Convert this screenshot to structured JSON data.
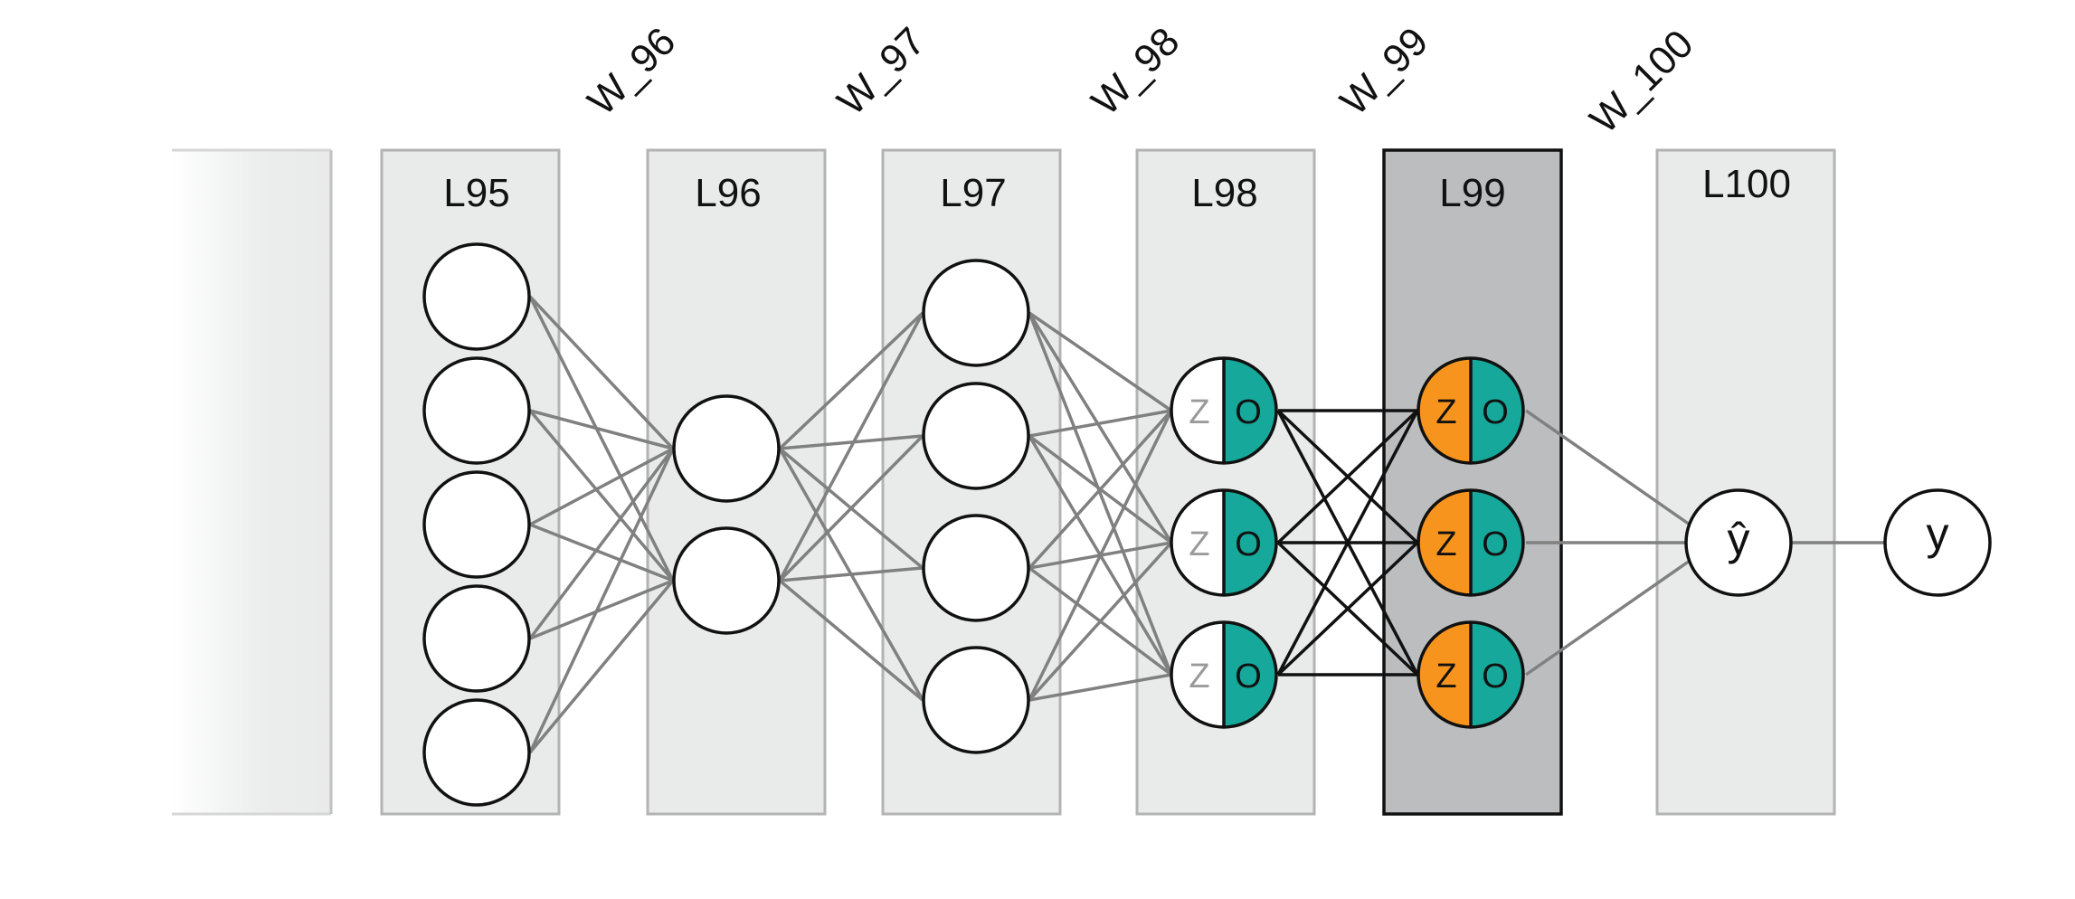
{
  "layers": [
    {
      "id": "l95",
      "label": "L95",
      "highlighted": false
    },
    {
      "id": "l96",
      "label": "L96",
      "highlighted": false
    },
    {
      "id": "l97",
      "label": "L97",
      "highlighted": false
    },
    {
      "id": "l98",
      "label": "L98",
      "highlighted": false
    },
    {
      "id": "l99",
      "label": "L99",
      "highlighted": true
    },
    {
      "id": "l100",
      "label": "L100",
      "highlighted": false
    }
  ],
  "weights": [
    "W_96",
    "W_97",
    "W_98",
    "W_99",
    "W_100"
  ],
  "node_parts": {
    "pre_activation": "Z",
    "output": "O"
  },
  "output_nodes": {
    "prediction": "ŷ",
    "target": "y"
  },
  "colors": {
    "layer_fill": "#e9eaea",
    "layer_border": "#b3b3b3",
    "highlight_fill": "#bcbdbf",
    "highlight_border": "#111111",
    "z_inactive": "#ffffff",
    "z_inactive_text": "#9a9a9a",
    "z_active": "#f7941d",
    "o_fill": "#16a99b",
    "edge_gray": "#808080",
    "edge_black": "#111111"
  }
}
